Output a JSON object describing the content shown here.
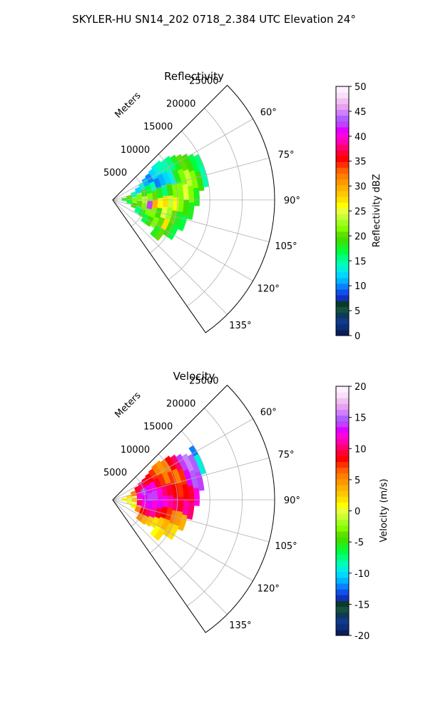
{
  "figure": {
    "title": "SKYLER-HU  SN14_202  0718_2.384 UTC Elevation 24°"
  },
  "chart_data": [
    {
      "type": "heatmap",
      "title": "Reflectivity",
      "radial_label": "Meters",
      "r_ticks": [
        5000,
        10000,
        15000,
        20000,
        25000
      ],
      "r_range": [
        0,
        25000
      ],
      "theta_ticks_deg": [
        60,
        75,
        90,
        105,
        120,
        135
      ],
      "theta_tick_labels": [
        "60°",
        "75°",
        "90°",
        "105°",
        "120°",
        "135°"
      ],
      "theta_range_deg": [
        45,
        145
      ],
      "grid": true,
      "colorbar": {
        "label": "Reflectivity dBZ",
        "ticks": [
          0,
          5,
          10,
          15,
          20,
          25,
          30,
          35,
          40,
          45,
          50
        ],
        "range": [
          0,
          50
        ],
        "colors": [
          "#0a1e5c",
          "#0b2f7a",
          "#123a8a",
          "#0e3a5a",
          "#14503e",
          "#0a3a2a",
          "#1030c0",
          "#0f50e8",
          "#0a80ff",
          "#00b4ff",
          "#00d8ff",
          "#00f0e0",
          "#00ffb0",
          "#00ff80",
          "#00ff40",
          "#20f020",
          "#40e000",
          "#60e000",
          "#80ff00",
          "#a0ff20",
          "#c8ff30",
          "#e8ff40",
          "#ffff00",
          "#ffe000",
          "#ffc800",
          "#ffb000",
          "#ff9800",
          "#ff8000",
          "#ff6000",
          "#ff3000",
          "#ff0000",
          "#ff0030",
          "#ff0070",
          "#ff00b0",
          "#ff00e0",
          "#e000ff",
          "#c040ff",
          "#b060ff",
          "#d080ff",
          "#e8a0f0",
          "#f0c0f0",
          "#f8e0f8",
          "#fff0ff"
        ]
      },
      "cells": [
        {
          "r": 1800,
          "theta": 88,
          "v": 18
        },
        {
          "r": 2600,
          "theta": 82,
          "v": 20
        },
        {
          "r": 2600,
          "theta": 96,
          "v": 17
        },
        {
          "r": 3400,
          "theta": 76,
          "v": 14
        },
        {
          "r": 3400,
          "theta": 90,
          "v": 22
        },
        {
          "r": 3400,
          "theta": 104,
          "v": 19
        },
        {
          "r": 4200,
          "theta": 70,
          "v": 12
        },
        {
          "r": 4200,
          "theta": 84,
          "v": 21
        },
        {
          "r": 4200,
          "theta": 98,
          "v": 20
        },
        {
          "r": 4200,
          "theta": 112,
          "v": 16
        },
        {
          "r": 5000,
          "theta": 66,
          "v": 13
        },
        {
          "r": 5000,
          "theta": 78,
          "v": 19
        },
        {
          "r": 5000,
          "theta": 90,
          "v": 24
        },
        {
          "r": 5000,
          "theta": 102,
          "v": 21
        },
        {
          "r": 5000,
          "theta": 114,
          "v": 18
        },
        {
          "r": 5800,
          "theta": 62,
          "v": 11
        },
        {
          "r": 5800,
          "theta": 74,
          "v": 17
        },
        {
          "r": 5800,
          "theta": 86,
          "v": 22
        },
        {
          "r": 5800,
          "theta": 98,
          "v": 42
        },
        {
          "r": 5800,
          "theta": 110,
          "v": 22
        },
        {
          "r": 5800,
          "theta": 120,
          "v": 17
        },
        {
          "r": 6600,
          "theta": 60,
          "v": 10
        },
        {
          "r": 6600,
          "theta": 72,
          "v": 15
        },
        {
          "r": 6600,
          "theta": 84,
          "v": 20
        },
        {
          "r": 6600,
          "theta": 96,
          "v": 30
        },
        {
          "r": 6600,
          "theta": 108,
          "v": 21
        },
        {
          "r": 6600,
          "theta": 120,
          "v": 19
        },
        {
          "r": 7400,
          "theta": 58,
          "v": 12
        },
        {
          "r": 7400,
          "theta": 70,
          "v": 10
        },
        {
          "r": 7400,
          "theta": 82,
          "v": 18
        },
        {
          "r": 7400,
          "theta": 94,
          "v": 26
        },
        {
          "r": 7400,
          "theta": 106,
          "v": 19
        },
        {
          "r": 7400,
          "theta": 118,
          "v": 22
        },
        {
          "r": 8200,
          "theta": 56,
          "v": 13
        },
        {
          "r": 8200,
          "theta": 68,
          "v": 11
        },
        {
          "r": 8200,
          "theta": 80,
          "v": 16
        },
        {
          "r": 8200,
          "theta": 92,
          "v": 27
        },
        {
          "r": 8200,
          "theta": 104,
          "v": 25
        },
        {
          "r": 8200,
          "theta": 116,
          "v": 20
        },
        {
          "r": 8200,
          "theta": 126,
          "v": 18
        },
        {
          "r": 9000,
          "theta": 56,
          "v": 15
        },
        {
          "r": 9000,
          "theta": 68,
          "v": 12
        },
        {
          "r": 9000,
          "theta": 80,
          "v": 19
        },
        {
          "r": 9000,
          "theta": 92,
          "v": 24
        },
        {
          "r": 9000,
          "theta": 104,
          "v": 23
        },
        {
          "r": 9000,
          "theta": 116,
          "v": 27
        },
        {
          "r": 9000,
          "theta": 126,
          "v": 20
        },
        {
          "r": 9800,
          "theta": 58,
          "v": 14
        },
        {
          "r": 9800,
          "theta": 70,
          "v": 13
        },
        {
          "r": 9800,
          "theta": 82,
          "v": 21
        },
        {
          "r": 9800,
          "theta": 94,
          "v": 26
        },
        {
          "r": 9800,
          "theta": 106,
          "v": 20
        },
        {
          "r": 9800,
          "theta": 118,
          "v": 19
        },
        {
          "r": 10600,
          "theta": 58,
          "v": 16
        },
        {
          "r": 10600,
          "theta": 70,
          "v": 18
        },
        {
          "r": 10600,
          "theta": 82,
          "v": 22
        },
        {
          "r": 10600,
          "theta": 94,
          "v": 21
        },
        {
          "r": 10600,
          "theta": 106,
          "v": 18
        },
        {
          "r": 10600,
          "theta": 118,
          "v": 17
        },
        {
          "r": 11400,
          "theta": 60,
          "v": 18
        },
        {
          "r": 11400,
          "theta": 72,
          "v": 21
        },
        {
          "r": 11400,
          "theta": 84,
          "v": 25
        },
        {
          "r": 11400,
          "theta": 96,
          "v": 19
        },
        {
          "r": 11400,
          "theta": 108,
          "v": 17
        },
        {
          "r": 12200,
          "theta": 62,
          "v": 20
        },
        {
          "r": 12200,
          "theta": 74,
          "v": 24
        },
        {
          "r": 12200,
          "theta": 86,
          "v": 22
        },
        {
          "r": 12200,
          "theta": 98,
          "v": 18
        },
        {
          "r": 13000,
          "theta": 64,
          "v": 19
        },
        {
          "r": 13000,
          "theta": 76,
          "v": 21
        },
        {
          "r": 13000,
          "theta": 88,
          "v": 18
        },
        {
          "r": 13800,
          "theta": 66,
          "v": 17
        },
        {
          "r": 13800,
          "theta": 78,
          "v": 19
        },
        {
          "r": 14600,
          "theta": 68,
          "v": 16
        },
        {
          "r": 14600,
          "theta": 76,
          "v": 14
        }
      ]
    },
    {
      "type": "heatmap",
      "title": "Velocity",
      "radial_label": "Meters",
      "r_ticks": [
        5000,
        10000,
        15000,
        20000,
        25000
      ],
      "r_range": [
        0,
        25000
      ],
      "theta_ticks_deg": [
        60,
        75,
        90,
        105,
        120,
        135
      ],
      "theta_tick_labels": [
        "60°",
        "75°",
        "90°",
        "105°",
        "120°",
        "135°"
      ],
      "theta_range_deg": [
        45,
        145
      ],
      "grid": true,
      "colorbar": {
        "label": "Velocity (m/s)",
        "ticks": [
          -20,
          -15,
          -10,
          -5,
          0,
          5,
          10,
          15,
          20
        ],
        "range": [
          -20,
          20
        ],
        "colors": [
          "#0a1e5c",
          "#0b2f7a",
          "#123a8a",
          "#0e3a5a",
          "#14503e",
          "#0a3a2a",
          "#1030c0",
          "#0f50e8",
          "#0a80ff",
          "#00b4ff",
          "#00d8ff",
          "#00f0e0",
          "#00ffb0",
          "#00ff80",
          "#00ff40",
          "#20f020",
          "#40e000",
          "#60e000",
          "#80ff00",
          "#a0ff20",
          "#c8ff30",
          "#e8ff40",
          "#ffff00",
          "#ffe000",
          "#ffc800",
          "#ffb000",
          "#ff9800",
          "#ff8000",
          "#ff6000",
          "#ff3000",
          "#ff0000",
          "#ff0030",
          "#ff0070",
          "#ff00b0",
          "#ff00e0",
          "#e000ff",
          "#c040ff",
          "#b060ff",
          "#d080ff",
          "#e8a0f0",
          "#f0c0f0",
          "#f8e0f8",
          "#fff0ff"
        ]
      },
      "cells": [
        {
          "r": 1800,
          "theta": 88,
          "v": 1
        },
        {
          "r": 2600,
          "theta": 80,
          "v": 2
        },
        {
          "r": 2600,
          "theta": 98,
          "v": 0
        },
        {
          "r": 3400,
          "theta": 74,
          "v": 6
        },
        {
          "r": 3400,
          "theta": 90,
          "v": 3
        },
        {
          "r": 3400,
          "theta": 106,
          "v": 1
        },
        {
          "r": 4200,
          "theta": 68,
          "v": 9
        },
        {
          "r": 4200,
          "theta": 82,
          "v": 12
        },
        {
          "r": 4200,
          "theta": 96,
          "v": 10
        },
        {
          "r": 4200,
          "theta": 110,
          "v": 6
        },
        {
          "r": 5000,
          "theta": 64,
          "v": 10
        },
        {
          "r": 5000,
          "theta": 76,
          "v": 14
        },
        {
          "r": 5000,
          "theta": 88,
          "v": 13
        },
        {
          "r": 5000,
          "theta": 100,
          "v": 12
        },
        {
          "r": 5000,
          "theta": 112,
          "v": 8
        },
        {
          "r": 5000,
          "theta": 122,
          "v": 6
        },
        {
          "r": 5800,
          "theta": 62,
          "v": 9
        },
        {
          "r": 5800,
          "theta": 74,
          "v": 13
        },
        {
          "r": 5800,
          "theta": 86,
          "v": 14
        },
        {
          "r": 5800,
          "theta": 98,
          "v": 13
        },
        {
          "r": 5800,
          "theta": 110,
          "v": 10
        },
        {
          "r": 5800,
          "theta": 122,
          "v": 4
        },
        {
          "r": 6600,
          "theta": 60,
          "v": 8
        },
        {
          "r": 6600,
          "theta": 72,
          "v": 12
        },
        {
          "r": 6600,
          "theta": 84,
          "v": 14
        },
        {
          "r": 6600,
          "theta": 96,
          "v": 12
        },
        {
          "r": 6600,
          "theta": 108,
          "v": 11
        },
        {
          "r": 6600,
          "theta": 120,
          "v": 3
        },
        {
          "r": 7400,
          "theta": 58,
          "v": 7
        },
        {
          "r": 7400,
          "theta": 70,
          "v": 9
        },
        {
          "r": 7400,
          "theta": 82,
          "v": 12
        },
        {
          "r": 7400,
          "theta": 94,
          "v": 13
        },
        {
          "r": 7400,
          "theta": 106,
          "v": 9
        },
        {
          "r": 7400,
          "theta": 118,
          "v": 2
        },
        {
          "r": 8200,
          "theta": 56,
          "v": 6
        },
        {
          "r": 8200,
          "theta": 68,
          "v": 7
        },
        {
          "r": 8200,
          "theta": 80,
          "v": 10
        },
        {
          "r": 8200,
          "theta": 92,
          "v": 12
        },
        {
          "r": 8200,
          "theta": 104,
          "v": 8
        },
        {
          "r": 8200,
          "theta": 116,
          "v": 3
        },
        {
          "r": 8200,
          "theta": 126,
          "v": 1
        },
        {
          "r": 9000,
          "theta": 56,
          "v": 5
        },
        {
          "r": 9000,
          "theta": 68,
          "v": 6
        },
        {
          "r": 9000,
          "theta": 80,
          "v": 9
        },
        {
          "r": 9000,
          "theta": 92,
          "v": 11
        },
        {
          "r": 9000,
          "theta": 104,
          "v": 7
        },
        {
          "r": 9000,
          "theta": 116,
          "v": 4
        },
        {
          "r": 9000,
          "theta": 126,
          "v": 2
        },
        {
          "r": 9800,
          "theta": 58,
          "v": 6
        },
        {
          "r": 9800,
          "theta": 70,
          "v": 7
        },
        {
          "r": 9800,
          "theta": 82,
          "v": 8
        },
        {
          "r": 9800,
          "theta": 94,
          "v": 10
        },
        {
          "r": 9800,
          "theta": 106,
          "v": 6
        },
        {
          "r": 9800,
          "theta": 118,
          "v": 3
        },
        {
          "r": 10600,
          "theta": 58,
          "v": 8
        },
        {
          "r": 10600,
          "theta": 70,
          "v": 6
        },
        {
          "r": 10600,
          "theta": 82,
          "v": 7
        },
        {
          "r": 10600,
          "theta": 94,
          "v": 9
        },
        {
          "r": 10600,
          "theta": 106,
          "v": 5
        },
        {
          "r": 10600,
          "theta": 118,
          "v": 2
        },
        {
          "r": 11400,
          "theta": 60,
          "v": 10
        },
        {
          "r": 11400,
          "theta": 72,
          "v": 7
        },
        {
          "r": 11400,
          "theta": 84,
          "v": 8
        },
        {
          "r": 11400,
          "theta": 96,
          "v": 11
        },
        {
          "r": 11400,
          "theta": 108,
          "v": 4
        },
        {
          "r": 12200,
          "theta": 62,
          "v": 14
        },
        {
          "r": 12200,
          "theta": 74,
          "v": 13
        },
        {
          "r": 12200,
          "theta": 86,
          "v": 9
        },
        {
          "r": 12200,
          "theta": 98,
          "v": 10
        },
        {
          "r": 13000,
          "theta": 64,
          "v": 16
        },
        {
          "r": 13000,
          "theta": 76,
          "v": 15
        },
        {
          "r": 13000,
          "theta": 88,
          "v": 12
        },
        {
          "r": 13800,
          "theta": 66,
          "v": 15
        },
        {
          "r": 13800,
          "theta": 78,
          "v": 14
        },
        {
          "r": 14600,
          "theta": 62,
          "v": -12
        },
        {
          "r": 14600,
          "theta": 68,
          "v": -9
        }
      ]
    }
  ]
}
